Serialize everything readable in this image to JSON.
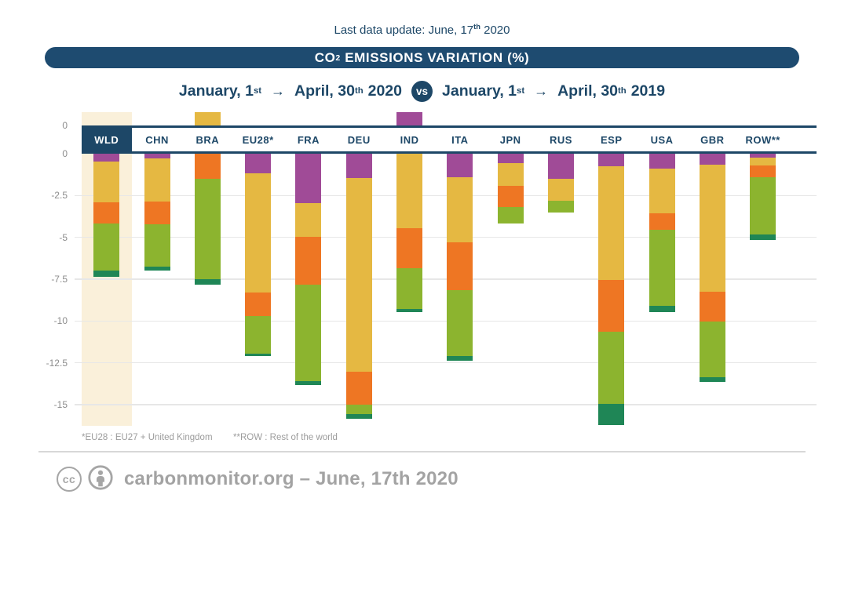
{
  "header": {
    "last_update_text": "Last data update: June, 17",
    "last_update_sup": "th",
    "last_update_year": "2020"
  },
  "title": {
    "pre": "CO",
    "sub": "2",
    "post": "EMISSIONS VARIATION (%)"
  },
  "subtitle": {
    "left": {
      "pre": "January, 1",
      "pre_sup": "st",
      "arrow": "→",
      "post": "April, 30",
      "post_sup": "th",
      "year": "2020"
    },
    "vs_label": "vs",
    "right": {
      "pre": "January, 1",
      "pre_sup": "st",
      "arrow": "→",
      "post": "April, 30",
      "post_sup": "th",
      "year": "2019"
    }
  },
  "footnotes": {
    "eu28": "*EU28 : EU27 + United Kingdom",
    "row": "**ROW : Rest of the world"
  },
  "footer": {
    "cc": "cc",
    "text": "carbonmonitor.org – June, 17th 2020"
  },
  "chart_data": {
    "type": "bar",
    "stacked": true,
    "unit": "%",
    "title": "CO2 EMISSIONS VARIATION (%)",
    "ylim": [
      -16.5,
      0.85
    ],
    "grid": "horizontal",
    "legend": "none",
    "highlighted_category": "WLD",
    "categories": [
      "WLD",
      "CHN",
      "BRA",
      "EU28*",
      "FRA",
      "DEU",
      "IND",
      "ITA",
      "JPN",
      "RUS",
      "ESP",
      "USA",
      "GBR",
      "ROW**"
    ],
    "colors": {
      "purple": "#a04b97",
      "yellow": "#e5b842",
      "orange": "#ee7623",
      "green": "#8cb42f",
      "teal": "#1f8656",
      "navy": "#1d4767",
      "cream": "#faf0da"
    },
    "y_axis": {
      "top_zero_label": "0",
      "ticks": [
        {
          "label": "0",
          "value": 0
        },
        {
          "label": "-2.5",
          "value": -2.5
        },
        {
          "label": "-5",
          "value": -5
        },
        {
          "label": "-7.5",
          "value": -7.5
        },
        {
          "label": "-10",
          "value": -10
        },
        {
          "label": "-12.5",
          "value": -12.5
        },
        {
          "label": "-15",
          "value": -15
        }
      ]
    },
    "bars": [
      {
        "country": "WLD",
        "highlight": true,
        "segments": [
          {
            "c": "purple",
            "v": -0.45
          },
          {
            "c": "yellow",
            "v": -2.45
          },
          {
            "c": "orange",
            "v": -1.25
          },
          {
            "c": "green",
            "v": -2.85
          },
          {
            "c": "teal",
            "v": -0.35
          }
        ],
        "total": -7.35
      },
      {
        "country": "CHN",
        "segments": [
          {
            "c": "purple",
            "v": -0.3
          },
          {
            "c": "yellow",
            "v": -2.55
          },
          {
            "c": "orange",
            "v": -1.35
          },
          {
            "c": "green",
            "v": -2.55
          },
          {
            "c": "teal",
            "v": -0.25
          }
        ],
        "total": -7.0
      },
      {
        "country": "BRA",
        "segments": [
          {
            "c": "yellow",
            "v": 0.8
          },
          {
            "c": "orange",
            "v": -1.5
          },
          {
            "c": "green",
            "v": -6.0
          },
          {
            "c": "teal",
            "v": -0.35
          }
        ],
        "total": -7.85
      },
      {
        "country": "EU28*",
        "segments": [
          {
            "c": "purple",
            "v": -1.15
          },
          {
            "c": "yellow",
            "v": -7.15
          },
          {
            "c": "orange",
            "v": -1.4
          },
          {
            "c": "green",
            "v": -2.25
          },
          {
            "c": "teal",
            "v": -0.15
          }
        ],
        "total": -12.1
      },
      {
        "country": "FRA",
        "segments": [
          {
            "c": "purple",
            "v": -2.95
          },
          {
            "c": "yellow",
            "v": -2.0
          },
          {
            "c": "orange",
            "v": -2.9
          },
          {
            "c": "green",
            "v": -5.75
          },
          {
            "c": "teal",
            "v": -0.25
          }
        ],
        "total": -13.85
      },
      {
        "country": "DEU",
        "segments": [
          {
            "c": "purple",
            "v": -1.45
          },
          {
            "c": "yellow",
            "v": -11.6
          },
          {
            "c": "orange",
            "v": -1.95
          },
          {
            "c": "green",
            "v": -0.55
          },
          {
            "c": "teal",
            "v": -0.3
          }
        ],
        "total": -15.85
      },
      {
        "country": "IND",
        "segments": [
          {
            "c": "purple",
            "v": 0.8
          },
          {
            "c": "yellow",
            "v": -4.45
          },
          {
            "c": "orange",
            "v": -2.4
          },
          {
            "c": "green",
            "v": -2.45
          },
          {
            "c": "teal",
            "v": -0.15
          }
        ],
        "total": -9.45
      },
      {
        "country": "ITA",
        "segments": [
          {
            "c": "purple",
            "v": -1.4
          },
          {
            "c": "yellow",
            "v": -3.9
          },
          {
            "c": "orange",
            "v": -2.85
          },
          {
            "c": "green",
            "v": -3.95
          },
          {
            "c": "teal",
            "v": -0.3
          }
        ],
        "total": -12.4
      },
      {
        "country": "JPN",
        "segments": [
          {
            "c": "purple",
            "v": -0.55
          },
          {
            "c": "yellow",
            "v": -1.35
          },
          {
            "c": "orange",
            "v": -1.3
          },
          {
            "c": "green",
            "v": -0.95
          }
        ],
        "total": -4.15
      },
      {
        "country": "RUS",
        "segments": [
          {
            "c": "purple",
            "v": -1.5
          },
          {
            "c": "yellow",
            "v": -1.3
          },
          {
            "c": "green",
            "v": -0.7
          }
        ],
        "total": -3.5
      },
      {
        "country": "ESP",
        "segments": [
          {
            "c": "purple",
            "v": -0.75
          },
          {
            "c": "yellow",
            "v": -6.8
          },
          {
            "c": "orange",
            "v": -3.1
          },
          {
            "c": "green",
            "v": -4.3
          },
          {
            "c": "teal",
            "v": -1.25
          }
        ],
        "total": -16.2
      },
      {
        "country": "USA",
        "segments": [
          {
            "c": "purple",
            "v": -0.9
          },
          {
            "c": "yellow",
            "v": -2.65
          },
          {
            "c": "orange",
            "v": -1.0
          },
          {
            "c": "green",
            "v": -4.55
          },
          {
            "c": "teal",
            "v": -0.35
          }
        ],
        "total": -9.45
      },
      {
        "country": "GBR",
        "segments": [
          {
            "c": "purple",
            "v": -0.65
          },
          {
            "c": "yellow",
            "v": -7.6
          },
          {
            "c": "orange",
            "v": -1.8
          },
          {
            "c": "green",
            "v": -3.3
          },
          {
            "c": "teal",
            "v": -0.3
          }
        ],
        "total": -13.65
      },
      {
        "country": "ROW**",
        "segments": [
          {
            "c": "purple",
            "v": -0.25
          },
          {
            "c": "yellow",
            "v": -0.45
          },
          {
            "c": "orange",
            "v": -0.7
          },
          {
            "c": "green",
            "v": -3.45
          },
          {
            "c": "teal",
            "v": -0.3
          }
        ],
        "total": -5.15
      }
    ]
  }
}
